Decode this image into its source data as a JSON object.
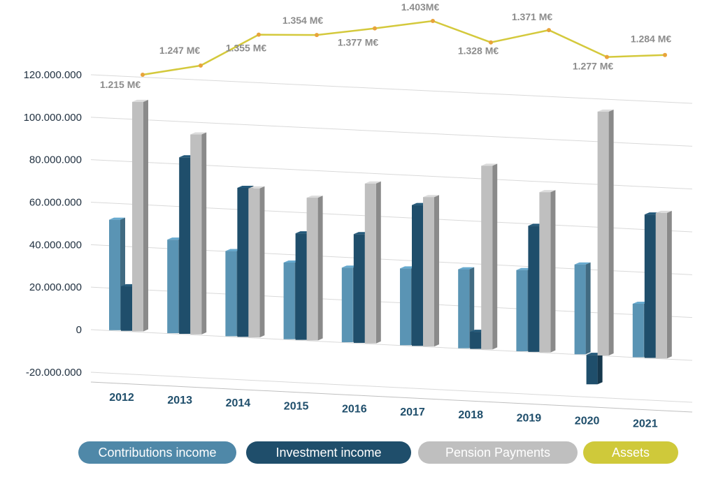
{
  "chart_data": {
    "type": "bar",
    "title": "",
    "xlabel": "",
    "ylabel": "",
    "ylim": [
      -20000000,
      120000000
    ],
    "y_ticks": [
      "120.000.000",
      "100.000.000",
      "80.000.000",
      "60.000.000",
      "40.000.000",
      "20.000.000",
      "0",
      "-20.000.000"
    ],
    "y_tick_values": [
      120000000,
      100000000,
      80000000,
      60000000,
      40000000,
      20000000,
      0,
      -20000000
    ],
    "categories": [
      "2012",
      "2013",
      "2014",
      "2015",
      "2016",
      "2017",
      "2018",
      "2019",
      "2020",
      "2021"
    ],
    "series": [
      {
        "name": "Contributions income",
        "color": "#5a94b4",
        "values": [
          52000000,
          44000000,
          40000000,
          36000000,
          35000000,
          36000000,
          37000000,
          38000000,
          42000000,
          25000000
        ]
      },
      {
        "name": "Investment income",
        "color": "#1f4e6b",
        "values": [
          21000000,
          83000000,
          70000000,
          50000000,
          51000000,
          66000000,
          8000000,
          59000000,
          -14000000,
          67000000
        ]
      },
      {
        "name": "Pension Payments",
        "color": "#bfbfbf",
        "values": [
          108000000,
          94000000,
          70000000,
          67000000,
          75000000,
          70000000,
          86000000,
          75000000,
          114000000,
          68000000
        ]
      }
    ],
    "assets": {
      "name": "Assets",
      "color": "#d4c93c",
      "values": [
        1215,
        1247,
        1355,
        1354,
        1377,
        1403,
        1328,
        1371,
        1277,
        1284
      ],
      "labels": [
        "1.215 M€",
        "1.247 M€",
        "1.355 M€",
        "1.354 M€",
        "1.377 M€",
        "1.403M€",
        "1.328 M€",
        "1.371 M€",
        "1.277 M€",
        "1.284 M€"
      ]
    },
    "grid": true,
    "legend_position": "bottom"
  },
  "legend": [
    {
      "label": "Contributions income",
      "color": "#4f88a8"
    },
    {
      "label": "Investment income",
      "color": "#1f4e6b"
    },
    {
      "label": "Pension Payments",
      "color": "#bfbfbf"
    },
    {
      "label": "Assets",
      "color": "#cfc93a"
    }
  ]
}
